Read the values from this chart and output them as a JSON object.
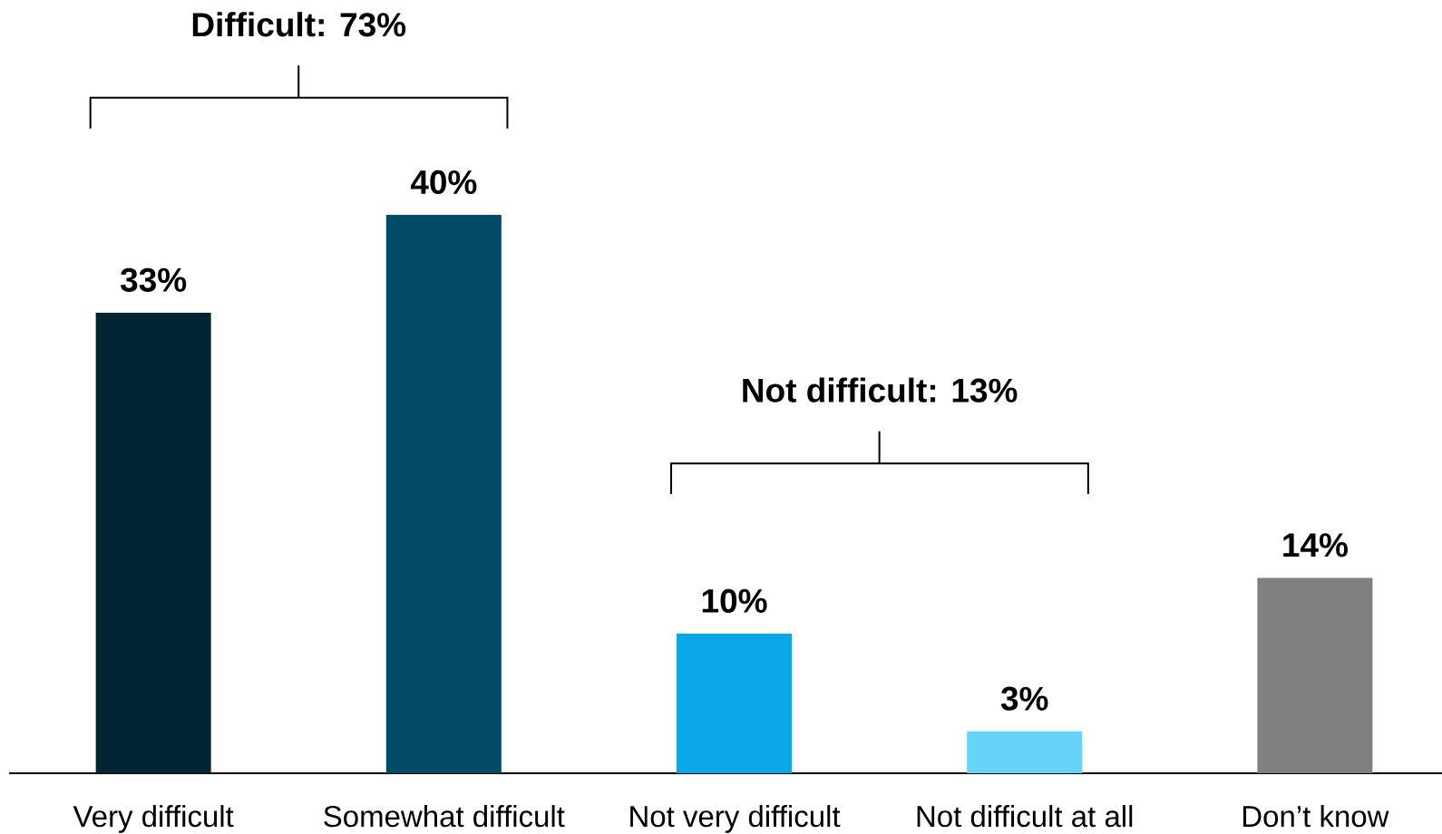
{
  "chart_data": {
    "type": "bar",
    "categories": [
      "Very difficult",
      "Somewhat difficult",
      "Not very difficult",
      "Not difficult at all",
      "Don’t know"
    ],
    "values": [
      33,
      40,
      10,
      3,
      14
    ],
    "colors": [
      "#032433",
      "#034a68",
      "#0aa7e6",
      "#66d3f8",
      "#808080"
    ],
    "value_labels": [
      "33%",
      "40%",
      "10%",
      "3%",
      "14%"
    ],
    "annotations": [
      "Difficult: 73%",
      "Not difficult: 13%"
    ]
  }
}
